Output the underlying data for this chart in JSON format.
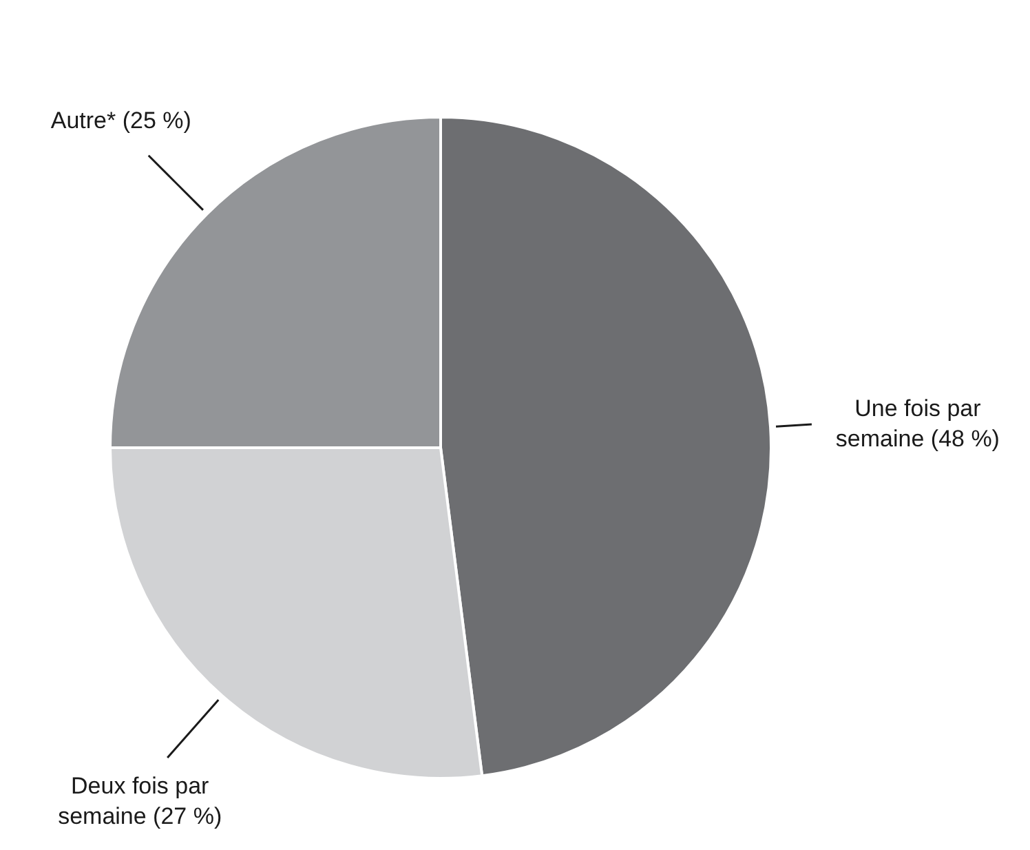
{
  "chart_data": {
    "type": "pie",
    "categories": [
      "Une fois par semaine (48 %)",
      "Deux fois par semaine (27 %)",
      "Autre* (25 %)"
    ],
    "values": [
      48,
      27,
      25
    ],
    "colors": [
      "#6d6e71",
      "#d1d2d4",
      "#939598"
    ]
  }
}
